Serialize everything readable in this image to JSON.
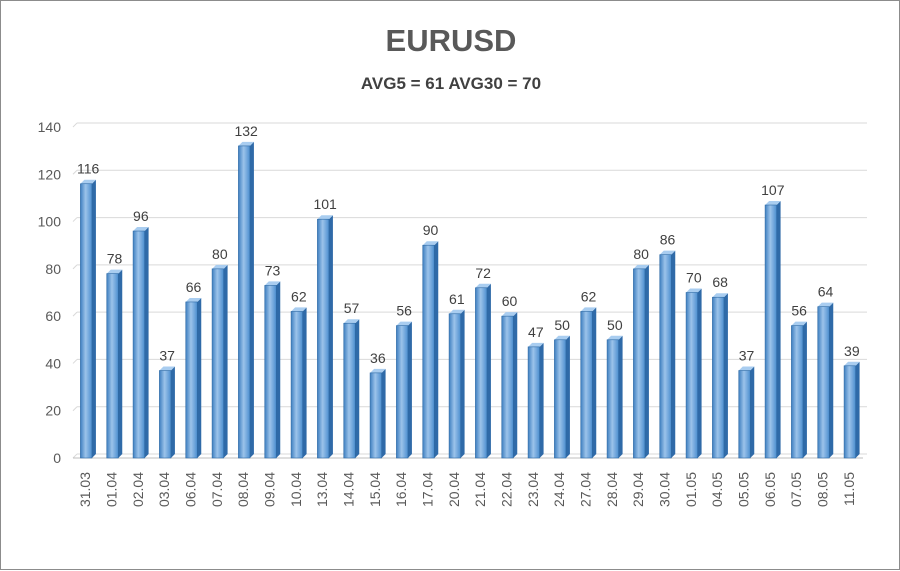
{
  "chart_data": {
    "type": "bar",
    "title": "EURUSD",
    "subtitle": "AVG5 = 61 AVG30 = 70",
    "xlabel": "",
    "ylabel": "",
    "ylim": [
      0,
      140
    ],
    "yticks": [
      0,
      20,
      40,
      60,
      80,
      100,
      120,
      140
    ],
    "grid": true,
    "legend": "none",
    "bar_color": "#5b9bd5",
    "categories": [
      "31.03",
      "01.04",
      "02.04",
      "03.04",
      "06.04",
      "07.04",
      "08.04",
      "09.04",
      "10.04",
      "13.04",
      "14.04",
      "15.04",
      "16.04",
      "17.04",
      "20.04",
      "21.04",
      "22.04",
      "23.04",
      "24.04",
      "27.04",
      "28.04",
      "29.04",
      "30.04",
      "01.05",
      "04.05",
      "05.05",
      "06.05",
      "07.05",
      "08.05",
      "11.05"
    ],
    "values": [
      116,
      78,
      96,
      37,
      66,
      80,
      132,
      73,
      62,
      101,
      57,
      36,
      56,
      90,
      61,
      72,
      60,
      47,
      50,
      62,
      50,
      80,
      86,
      70,
      68,
      37,
      107,
      56,
      64,
      39
    ]
  }
}
